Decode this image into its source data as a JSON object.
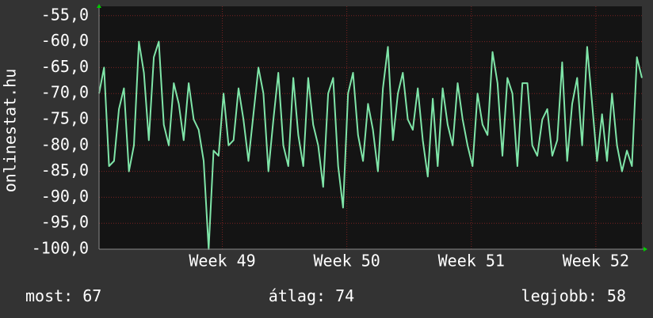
{
  "chart_data": {
    "type": "line",
    "y_label": "onlinestat.hu",
    "x": [
      48.01,
      48.05,
      48.09,
      48.13,
      48.17,
      48.21,
      48.25,
      48.29,
      48.33,
      48.37,
      48.41,
      48.45,
      48.49,
      48.53,
      48.57,
      48.61,
      48.65,
      48.69,
      48.73,
      48.77,
      48.81,
      48.85,
      48.89,
      48.93,
      48.97,
      49.01,
      49.05,
      49.09,
      49.13,
      49.17,
      49.21,
      49.25,
      49.29,
      49.33,
      49.37,
      49.41,
      49.45,
      49.49,
      49.53,
      49.57,
      49.61,
      49.65,
      49.69,
      49.73,
      49.77,
      49.81,
      49.85,
      49.89,
      49.93,
      49.97,
      50.01,
      50.05,
      50.09,
      50.13,
      50.17,
      50.21,
      50.25,
      50.29,
      50.33,
      50.37,
      50.41,
      50.45,
      50.49,
      50.53,
      50.57,
      50.61,
      50.65,
      50.69,
      50.73,
      50.77,
      50.81,
      50.85,
      50.89,
      50.93,
      50.97,
      51.01,
      51.05,
      51.09,
      51.13,
      51.17,
      51.21,
      51.25,
      51.29,
      51.33,
      51.37,
      51.41,
      51.45,
      51.49,
      51.53,
      51.57,
      51.61,
      51.65,
      51.69,
      51.73,
      51.77,
      51.81,
      51.85,
      51.89,
      51.93,
      51.97,
      52.01,
      52.05,
      52.09,
      52.13,
      52.17,
      52.21,
      52.25,
      52.29,
      52.33,
      52.37
    ],
    "values": [
      -70,
      -65,
      -84,
      -83,
      -73,
      -69,
      -85,
      -80,
      -60,
      -66,
      -79,
      -63,
      -60,
      -76,
      -80,
      -68,
      -72,
      -79,
      -68,
      -75,
      -77,
      -83,
      -100,
      -81,
      -82,
      -70,
      -80,
      -79,
      -69,
      -75,
      -83,
      -74,
      -65,
      -70,
      -85,
      -75,
      -66,
      -80,
      -84,
      -67,
      -78,
      -84,
      -67,
      -76,
      -80,
      -88,
      -70,
      -67,
      -84,
      -92,
      -70,
      -66,
      -78,
      -83,
      -72,
      -77,
      -85,
      -69,
      -61,
      -79,
      -70,
      -66,
      -75,
      -77,
      -69,
      -79,
      -86,
      -71,
      -84,
      -69,
      -76,
      -80,
      -68,
      -75,
      -80,
      -84,
      -70,
      -76,
      -78,
      -62,
      -68,
      -82,
      -67,
      -70,
      -84,
      -68,
      -68,
      -80,
      -82,
      -75,
      -73,
      -82,
      -79,
      -64,
      -83,
      -72,
      -67,
      -80,
      -61,
      -72,
      -83,
      -74,
      -83,
      -70,
      -80,
      -85,
      -81,
      -84,
      -63,
      -67
    ],
    "color": "#7fe5a8",
    "xlim": [
      48.01,
      52.37
    ],
    "xticks": [
      {
        "value": 49,
        "label": "Week 49"
      },
      {
        "value": 50,
        "label": "Week 50"
      },
      {
        "value": 51,
        "label": "Week 51"
      },
      {
        "value": 52,
        "label": "Week 52"
      }
    ],
    "ylim": [
      -100,
      -53.2
    ],
    "yticks": [
      {
        "value": -55,
        "label": "-55,0"
      },
      {
        "value": -60,
        "label": "-60,0"
      },
      {
        "value": -65,
        "label": "-65,0"
      },
      {
        "value": -70,
        "label": "-70,0"
      },
      {
        "value": -75,
        "label": "-75,0"
      },
      {
        "value": -80,
        "label": "-80,0"
      },
      {
        "value": -85,
        "label": "-85,0"
      },
      {
        "value": -90,
        "label": "-90,0"
      },
      {
        "value": -95,
        "label": "-95,0"
      },
      {
        "value": -100,
        "label": "-100,0"
      }
    ],
    "grid": true,
    "footer": [
      {
        "label": "most:",
        "value": 67
      },
      {
        "label": "átlag:",
        "value": 74
      },
      {
        "label": "legjobb:",
        "value": 58
      }
    ]
  }
}
